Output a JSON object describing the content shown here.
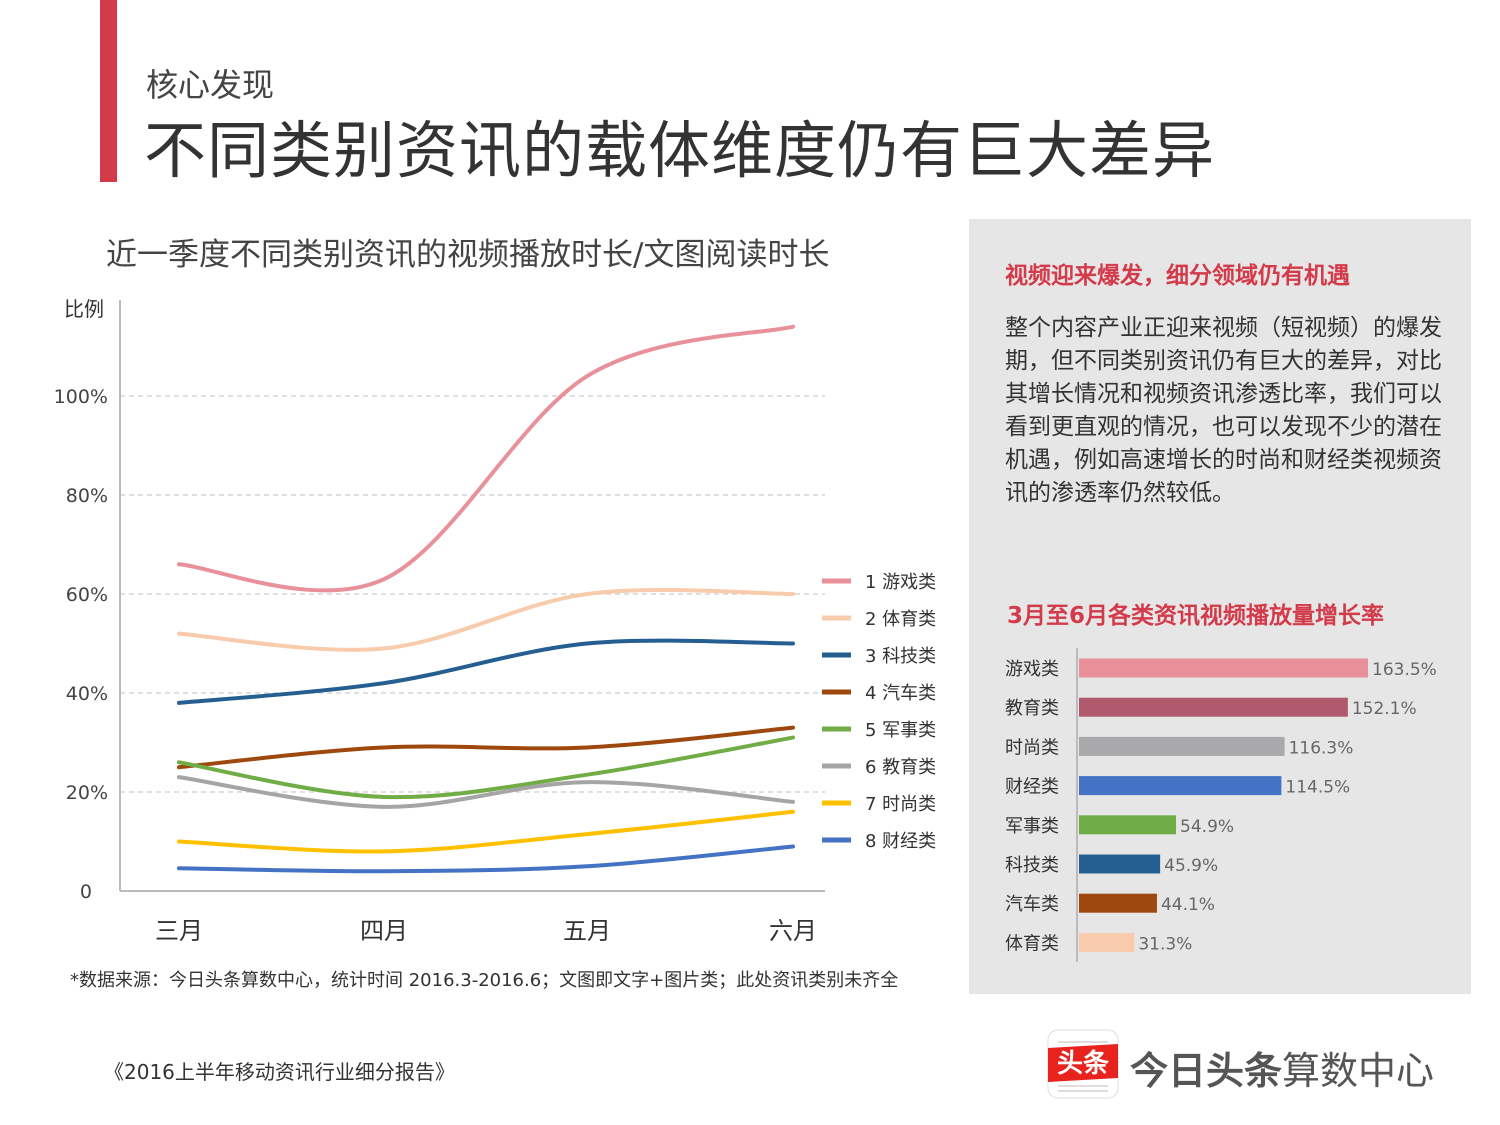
{
  "header": {
    "kicker": "核心发现",
    "title": "不同类别资讯的载体维度仍有巨大差异"
  },
  "chart_data": [
    {
      "type": "line",
      "title": "近一季度不同类别资讯的视频播放时长/文图阅读时长",
      "ylabel": "比例",
      "categories": [
        "三月",
        "四月",
        "五月",
        "六月"
      ],
      "ylim": [
        0,
        1.2
      ],
      "yticks": [
        {
          "v": 0,
          "label": "0"
        },
        {
          "v": 0.2,
          "label": "20%"
        },
        {
          "v": 0.4,
          "label": "40%"
        },
        {
          "v": 0.6,
          "label": "60%"
        },
        {
          "v": 0.8,
          "label": "80%"
        },
        {
          "v": 1.0,
          "label": "100%"
        }
      ],
      "grid": true,
      "legend": "right",
      "smooth": true,
      "series": [
        {
          "name": "1 游戏类",
          "color": "#e8919a",
          "values": [
            0.66,
            0.63,
            1.04,
            1.14
          ]
        },
        {
          "name": "2 体育类",
          "color": "#f8cbad",
          "values": [
            0.52,
            0.49,
            0.6,
            0.6
          ]
        },
        {
          "name": "3 科技类",
          "color": "#255e91",
          "values": [
            0.38,
            0.42,
            0.5,
            0.5
          ]
        },
        {
          "name": "4 汽车类",
          "color": "#9e480e",
          "values": [
            0.25,
            0.29,
            0.29,
            0.33
          ]
        },
        {
          "name": "5 军事类",
          "color": "#70ad47",
          "values": [
            0.26,
            0.19,
            0.235,
            0.31
          ]
        },
        {
          "name": "6 教育类",
          "color": "#a5a5a5",
          "values": [
            0.23,
            0.17,
            0.22,
            0.18
          ]
        },
        {
          "name": "7 时尚类",
          "color": "#ffc000",
          "values": [
            0.1,
            0.08,
            0.115,
            0.16
          ]
        },
        {
          "name": "8 财经类",
          "color": "#4472c4",
          "values": [
            0.046,
            0.04,
            0.05,
            0.09
          ]
        }
      ]
    },
    {
      "type": "bar",
      "orientation": "horizontal",
      "title": "3月至6月各类资讯视频播放量增长率",
      "categories": [
        "游戏类",
        "教育类",
        "时尚类",
        "财经类",
        "军事类",
        "科技类",
        "汽车类",
        "体育类"
      ],
      "values": [
        163.5,
        152.1,
        116.3,
        114.5,
        54.9,
        45.9,
        44.1,
        31.3
      ],
      "labels": [
        "163.5%",
        "152.1%",
        "116.3%",
        "114.5%",
        "54.9%",
        "45.9%",
        "44.1%",
        "31.3%"
      ],
      "colors": [
        "#e8919a",
        "#b0596d",
        "#a9a8aa",
        "#4472c4",
        "#70ad47",
        "#255e91",
        "#9e480e",
        "#f8cbad"
      ]
    }
  ],
  "footnote": "*数据来源：今日头条算数中心，统计时间 2016.3-2016.6；文图即文字+图片类；此处资讯类别未齐全",
  "report": "《2016上半年移动资讯行业细分报告》",
  "panel": {
    "heading": "视频迎来爆发，细分领域仍有机遇",
    "body": "整个内容产业正迎来视频（短视频）的爆发期，但不同类别资讯仍有巨大的差异，对比其增长情况和视频资讯渗透比率，我们可以看到更直观的情况，也可以发现不少的潜在机遇，例如高速增长的时尚和财经类视频资讯的渗透率仍然较低。"
  },
  "logo": {
    "icon_text": "头条",
    "brand_bold": "今日头条",
    "brand_rest": "算数中心",
    "accent": "#e8231e"
  }
}
